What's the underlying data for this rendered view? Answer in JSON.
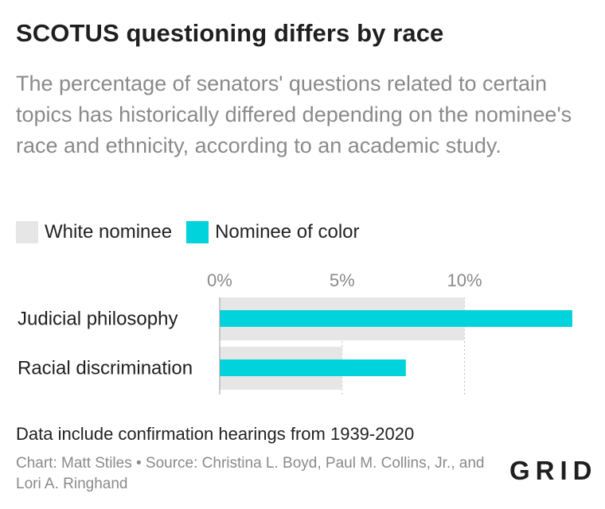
{
  "title": "SCOTUS questioning differs by race",
  "subtitle": "The percentage of senators' questions related to certain topics has historically differed depending on the nominee's race and ethnicity, according to an academic study.",
  "legend": {
    "white": "White nominee",
    "color": "Nominee of color"
  },
  "colors": {
    "white": "#e6e6e6",
    "color": "#00d3db"
  },
  "chart_data": {
    "type": "bar",
    "orientation": "horizontal",
    "categories": [
      "Judicial philosophy",
      "Racial discrimination"
    ],
    "series": [
      {
        "name": "White nominee",
        "values": [
          10,
          5
        ]
      },
      {
        "name": "Nominee of color",
        "values": [
          14.4,
          7.6
        ]
      }
    ],
    "xlim": [
      0,
      14.5
    ],
    "ticks": [
      0,
      5,
      10
    ],
    "tick_labels": [
      "0%",
      "5%",
      "10%"
    ],
    "grid": true,
    "legend_position": "top-left"
  },
  "note": "Data include confirmation hearings from 1939-2020",
  "source": "Chart: Matt Stiles • Source: Christina L. Boyd, Paul M. Collins, Jr., and Lori A. Ringhand",
  "logo": "GRID"
}
